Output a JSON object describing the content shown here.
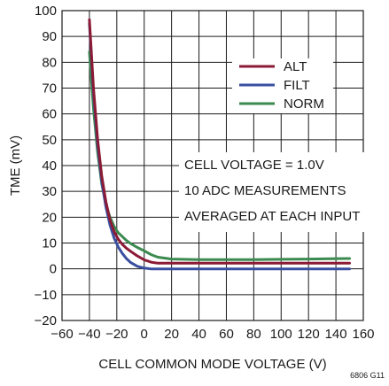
{
  "chart_data": {
    "type": "line",
    "title": "",
    "xlabel": "CELL COMMON MODE VOLTAGE (V)",
    "ylabel": "TME (mV)",
    "xlim": [
      -60,
      160
    ],
    "ylim": [
      -20,
      100
    ],
    "x_ticks": [
      -60,
      -40,
      -20,
      0,
      20,
      40,
      60,
      80,
      100,
      120,
      140,
      160
    ],
    "y_ticks": [
      -20,
      -10,
      0,
      10,
      20,
      30,
      40,
      50,
      60,
      70,
      80,
      90,
      100
    ],
    "x_tick_labels": [
      "−60",
      "−40",
      "−20",
      "0",
      "20",
      "40",
      "60",
      "80",
      "100",
      "120",
      "140",
      "160"
    ],
    "y_tick_labels": [
      "−20",
      "−10",
      "0",
      "10",
      "20",
      "30",
      "40",
      "50",
      "60",
      "70",
      "80",
      "90",
      "100"
    ],
    "grid": true,
    "legend_position": "top-right",
    "series": [
      {
        "name": "ALT",
        "color": "#8b1a35",
        "x": [
          -40,
          -37,
          -34,
          -31,
          -28,
          -25,
          -22,
          -19,
          -16,
          -13,
          -10,
          -5,
          0,
          5,
          10,
          20,
          40,
          60,
          80,
          100,
          120,
          150
        ],
        "y": [
          96.5,
          70,
          50,
          36,
          26,
          19,
          14.5,
          11.5,
          9.5,
          8,
          6.8,
          5,
          3.5,
          2.6,
          2.2,
          2.2,
          2.2,
          2.2,
          2.2,
          2.2,
          2.2,
          2.2
        ]
      },
      {
        "name": "FILT",
        "color": "#3a4fa0",
        "x": [
          -40,
          -37,
          -34,
          -31,
          -28,
          -25,
          -22,
          -19,
          -16,
          -13,
          -10,
          -5,
          0,
          5,
          10,
          20,
          40,
          60,
          80,
          100,
          120,
          150
        ],
        "y": [
          95,
          68,
          48,
          34,
          24,
          17,
          12,
          8.5,
          6,
          4,
          2.5,
          1,
          0.3,
          0,
          0,
          0,
          0,
          0,
          0,
          0,
          0,
          0
        ]
      },
      {
        "name": "NORM",
        "color": "#3b8a4f",
        "x": [
          -40,
          -37,
          -34,
          -31,
          -28,
          -25,
          -22,
          -19,
          -16,
          -13,
          -10,
          -5,
          0,
          5,
          10,
          20,
          40,
          60,
          80,
          100,
          120,
          150
        ],
        "y": [
          84,
          62,
          45,
          33,
          25,
          20,
          16.5,
          14,
          12.5,
          11,
          9.8,
          8.3,
          7,
          5.5,
          4.5,
          3.8,
          3.6,
          3.6,
          3.6,
          3.7,
          3.8,
          4
        ]
      }
    ],
    "annotations": [
      "CELL VOLTAGE = 1.0V",
      "10 ADC MEASUREMENTS",
      "AVERAGED AT EACH INPUT"
    ],
    "figure_id": "6806 G11"
  }
}
